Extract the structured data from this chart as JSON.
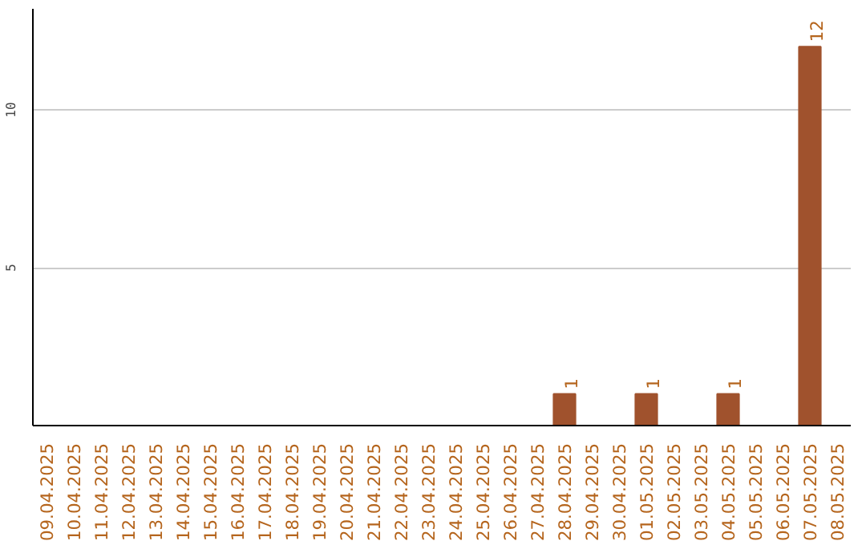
{
  "chart_data": {
    "type": "bar",
    "categories": [
      "09.04.2025",
      "10.04.2025",
      "11.04.2025",
      "12.04.2025",
      "13.04.2025",
      "14.04.2025",
      "15.04.2025",
      "16.04.2025",
      "17.04.2025",
      "18.04.2025",
      "19.04.2025",
      "20.04.2025",
      "21.04.2025",
      "22.04.2025",
      "23.04.2025",
      "24.04.2025",
      "25.04.2025",
      "26.04.2025",
      "27.04.2025",
      "28.04.2025",
      "29.04.2025",
      "30.04.2025",
      "01.05.2025",
      "02.05.2025",
      "03.05.2025",
      "04.05.2025",
      "05.05.2025",
      "06.05.2025",
      "07.05.2025",
      "08.05.2025"
    ],
    "values": [
      0,
      0,
      0,
      0,
      0,
      0,
      0,
      0,
      0,
      0,
      0,
      0,
      0,
      0,
      0,
      0,
      0,
      0,
      0,
      1,
      0,
      0,
      1,
      0,
      0,
      1,
      0,
      0,
      12,
      0
    ],
    "value_labels": [
      null,
      null,
      null,
      null,
      null,
      null,
      null,
      null,
      null,
      null,
      null,
      null,
      null,
      null,
      null,
      null,
      null,
      null,
      null,
      "1",
      null,
      null,
      "1",
      null,
      null,
      "1",
      null,
      null,
      "12",
      null
    ],
    "color": "#a0522d",
    "ylim": [
      0,
      13.2
    ],
    "yticks": [
      5,
      10
    ],
    "grid": "y"
  }
}
